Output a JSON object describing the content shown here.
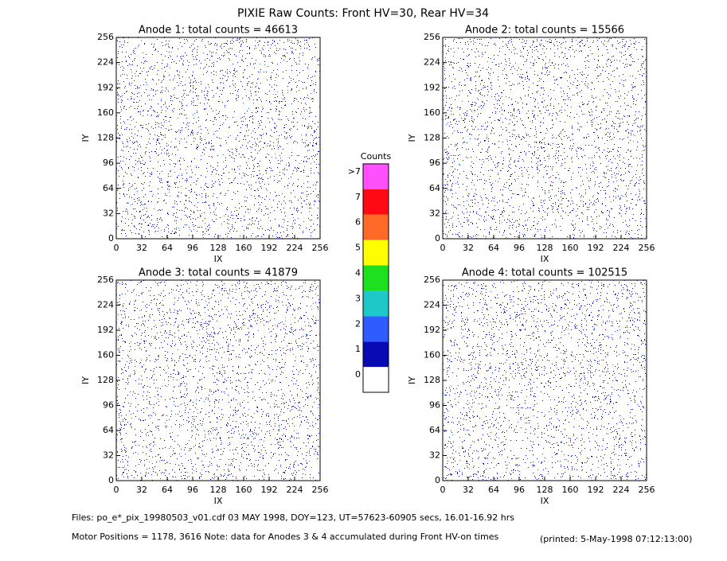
{
  "title": "PIXIE Raw Counts:  Front HV=30, Rear HV=34",
  "chart_data": [
    {
      "type": "heatmap",
      "title": "Anode 1: total counts = 46613",
      "x_label": "IX",
      "y_label": "IY",
      "xlim": [
        0,
        256
      ],
      "ylim": [
        0,
        256
      ],
      "xticks": [
        0,
        32,
        64,
        96,
        128,
        160,
        192,
        224,
        256
      ],
      "yticks": [
        0,
        32,
        64,
        96,
        128,
        160,
        192,
        224,
        256
      ]
    },
    {
      "type": "heatmap",
      "title": "Anode 2: total counts = 15566",
      "x_label": "IX",
      "y_label": "IY",
      "xlim": [
        0,
        256
      ],
      "ylim": [
        0,
        256
      ],
      "xticks": [
        0,
        32,
        64,
        96,
        128,
        160,
        192,
        224,
        256
      ],
      "yticks": [
        0,
        32,
        64,
        96,
        128,
        160,
        192,
        224,
        256
      ]
    },
    {
      "type": "heatmap",
      "title": "Anode 3: total counts = 41879",
      "x_label": "IX",
      "y_label": "IY",
      "xlim": [
        0,
        256
      ],
      "ylim": [
        0,
        256
      ],
      "xticks": [
        0,
        32,
        64,
        96,
        128,
        160,
        192,
        224,
        256
      ],
      "yticks": [
        0,
        32,
        64,
        96,
        128,
        160,
        192,
        224,
        256
      ]
    },
    {
      "type": "heatmap",
      "title": "Anode 4: total counts = 102515",
      "x_label": "IX",
      "y_label": "IY",
      "xlim": [
        0,
        256
      ],
      "ylim": [
        0,
        256
      ],
      "xticks": [
        0,
        32,
        64,
        96,
        128,
        160,
        192,
        224,
        256
      ],
      "yticks": [
        0,
        32,
        64,
        96,
        128,
        160,
        192,
        224,
        256
      ]
    }
  ],
  "colorbar": {
    "title": "Counts",
    "labels": [
      "0",
      "1",
      "2",
      "3",
      "4",
      "5",
      "6",
      "7",
      ">7"
    ],
    "colors": [
      "#ffffff",
      "#0a0ab4",
      "#2e5cff",
      "#1ec8c8",
      "#1ee01e",
      "#ffff00",
      "#ff6a28",
      "#ff0a14",
      "#ff50ff"
    ]
  },
  "footer": {
    "files": "Files: po_e*_pix_19980503_v01.cdf    03 MAY 1998, DOY=123, UT=57623-60905 secs, 16.01-16.92 hrs",
    "motor": "Motor Positions = 1178, 3616    Note: data for Anodes 3 & 4 accumulated during Front HV-on times",
    "printed": "(printed:  5-May-1998 07:12:13:00)"
  }
}
